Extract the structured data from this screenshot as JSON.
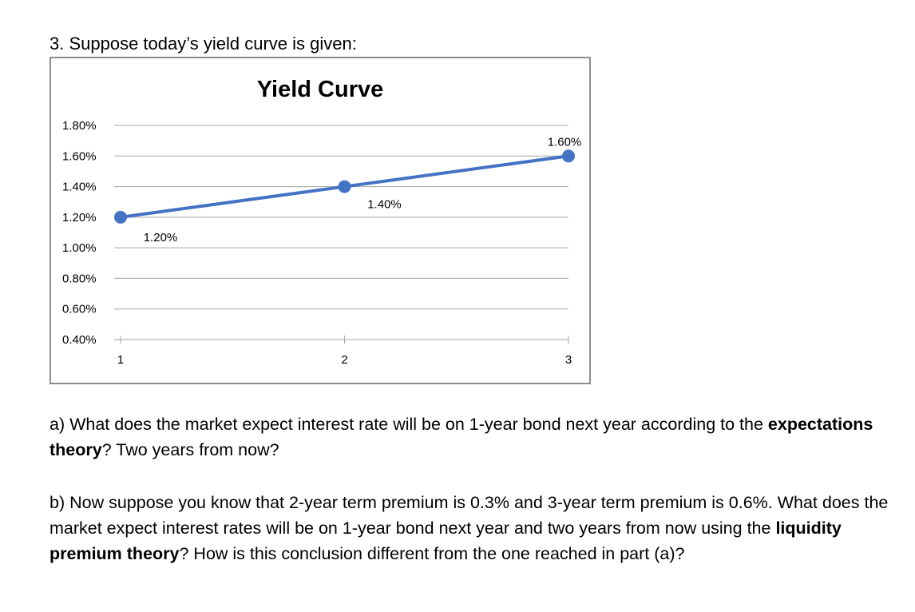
{
  "question": {
    "heading": "3. Suppose today’s yield curve is given:"
  },
  "chart_data": {
    "type": "line",
    "title": "Yield Curve",
    "xlabel": "",
    "ylabel": "",
    "x": [
      1,
      2,
      3
    ],
    "x_tick_labels": [
      "1",
      "2",
      "3"
    ],
    "series": [
      {
        "values": [
          1.2,
          1.4,
          1.6
        ],
        "data_labels": [
          "1.20%",
          "1.40%",
          "1.60%"
        ]
      }
    ],
    "ylim": [
      0.4,
      1.8
    ],
    "y_ticks": [
      1.8,
      1.6,
      1.4,
      1.2,
      1.0,
      0.8,
      0.6,
      0.4
    ],
    "y_tick_labels": [
      "1.80%",
      "1.60%",
      "1.40%",
      "1.20%",
      "1.00%",
      "0.80%",
      "0.60%",
      "0.40%"
    ],
    "grid": true,
    "legend": "none",
    "line_color": "#4472C4",
    "grid_color": "#a6a6a6"
  },
  "part_a": {
    "text_1": "a) What does the market expect interest rate will be on 1-year bond next year according to the ",
    "bold_1": "expectations theory",
    "text_2": "? Two years from now?"
  },
  "part_b": {
    "text_1": "b) Now suppose you know that 2-year term premium is 0.3% and 3-year term premium is 0.6%. What does the market expect interest rates will be on 1-year bond next year and two years from now using the ",
    "bold_1": "liquidity premium theory",
    "text_2": "? How is this conclusion different from the one reached in part (a)?"
  }
}
